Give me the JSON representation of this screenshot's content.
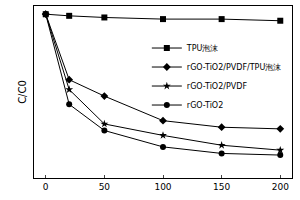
{
  "chart_data": {
    "type": "line",
    "y_label": "C/C0",
    "x": [
      0,
      20,
      50,
      100,
      150,
      200
    ],
    "series": [
      {
        "name": "TPU泡沫",
        "color": "#000000",
        "marker": "square",
        "values": [
          1.0,
          0.99,
          0.98,
          0.97,
          0.97,
          0.96
        ]
      },
      {
        "name": "rGO-TiO2/PVDF/TPU泡沫",
        "color": "#000000",
        "marker": "diamond",
        "values": [
          1.0,
          0.6,
          0.5,
          0.35,
          0.31,
          0.3
        ]
      },
      {
        "name": "rGO-TiO2/PVDF",
        "color": "#000000",
        "marker": "star",
        "values": [
          1.0,
          0.54,
          0.33,
          0.26,
          0.2,
          0.17
        ]
      },
      {
        "name": "rGO-TiO2",
        "color": "#000000",
        "marker": "circle",
        "values": [
          1.0,
          0.45,
          0.29,
          0.19,
          0.15,
          0.14
        ]
      }
    ],
    "xlim": [
      -10,
      210
    ],
    "xticks": [
      0,
      50,
      100,
      150,
      200
    ],
    "ylim": [
      0,
      1.05
    ],
    "grid": false,
    "legend": "upper right",
    "tick_labels": "x"
  }
}
